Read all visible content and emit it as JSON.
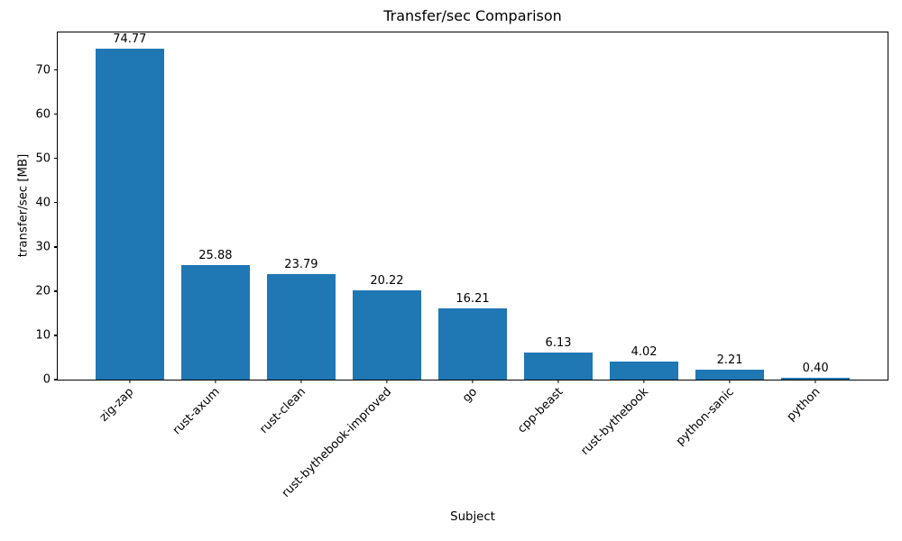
{
  "chart_data": {
    "type": "bar",
    "title": "Transfer/sec Comparison",
    "xlabel": "Subject",
    "ylabel": "transfer/sec [MB]",
    "categories": [
      "zig-zap",
      "rust-axum",
      "rust-clean",
      "rust-bythebook-improved",
      "go",
      "cpp-beast",
      "rust-bythebook",
      "python-sanic",
      "python"
    ],
    "values": [
      74.77,
      25.88,
      23.79,
      20.22,
      16.21,
      6.13,
      4.02,
      2.21,
      0.4
    ],
    "value_labels": [
      "74.77",
      "25.88",
      "23.79",
      "20.22",
      "16.21",
      "6.13",
      "4.02",
      "2.21",
      "0.40"
    ],
    "yticks": [
      0,
      10,
      20,
      30,
      40,
      50,
      60,
      70
    ],
    "ylim": [
      0,
      78.51
    ],
    "bar_color": "#1f77b4",
    "bar_width_units": 0.8,
    "x_margin_units": 0.84,
    "grid": false,
    "legend_position": "none"
  }
}
